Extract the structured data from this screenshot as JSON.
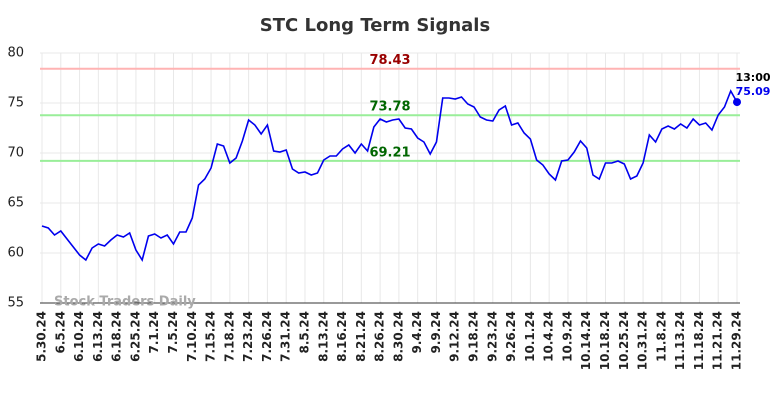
{
  "chart_data": {
    "type": "line",
    "title": "STC Long Term Signals",
    "watermark": "Stock Traders Daily",
    "categories": [
      "5.30.24",
      null,
      null,
      "6.5.24",
      null,
      null,
      "6.10.24",
      null,
      null,
      "6.13.24",
      null,
      null,
      "6.18.24",
      null,
      null,
      "6.25.24",
      null,
      null,
      "7.1.24",
      null,
      null,
      "7.5.24",
      null,
      null,
      "7.10.24",
      null,
      null,
      "7.15.24",
      null,
      null,
      "7.18.24",
      null,
      null,
      "7.23.24",
      null,
      null,
      "7.26.24",
      null,
      null,
      "7.31.24",
      null,
      null,
      "8.5.24",
      null,
      null,
      "8.13.24",
      null,
      null,
      "8.16.24",
      null,
      null,
      "8.21.24",
      null,
      null,
      "8.26.24",
      null,
      null,
      "8.30.24",
      null,
      null,
      "9.4.24",
      null,
      null,
      "9.9.24",
      null,
      null,
      "9.12.24",
      null,
      null,
      "9.18.24",
      null,
      null,
      "9.23.24",
      null,
      null,
      "9.26.24",
      null,
      null,
      "10.1.24",
      null,
      null,
      "10.4.24",
      null,
      null,
      "10.9.24",
      null,
      null,
      "10.14.24",
      null,
      null,
      "10.18.24",
      null,
      null,
      "10.25.24",
      null,
      null,
      "10.31.24",
      null,
      null,
      "11.8.24",
      null,
      null,
      "11.13.24",
      null,
      null,
      "11.18.24",
      null,
      null,
      "11.21.24",
      null,
      null,
      "11.29.24"
    ],
    "series": [
      {
        "color": "#0000ee",
        "values": [
          62.7,
          62.5,
          61.8,
          62.2,
          61.4,
          60.6,
          59.8,
          59.3,
          60.5,
          60.9,
          60.7,
          61.3,
          61.8,
          61.6,
          62.0,
          60.3,
          59.3,
          61.7,
          61.9,
          61.5,
          61.8,
          60.9,
          62.1,
          62.1,
          63.5,
          66.8,
          67.4,
          68.5,
          70.9,
          70.7,
          69.0,
          69.5,
          71.2,
          73.3,
          72.8,
          71.9,
          72.8,
          70.2,
          70.1,
          70.3,
          68.4,
          68.0,
          68.1,
          67.8,
          68.0,
          69.3,
          69.7,
          69.7,
          70.4,
          70.8,
          70.0,
          70.9,
          70.2,
          72.6,
          73.4,
          73.1,
          73.3,
          73.4,
          72.5,
          72.4,
          71.5,
          71.1,
          69.9,
          71.1,
          75.5,
          75.5,
          75.4,
          75.6,
          74.9,
          74.6,
          73.6,
          73.3,
          73.2,
          74.3,
          74.7,
          72.8,
          73.0,
          72.0,
          71.4,
          69.3,
          68.8,
          67.9,
          67.3,
          69.2,
          69.3,
          70.1,
          71.2,
          70.5,
          67.8,
          67.4,
          69.0,
          69.0,
          69.2,
          68.9,
          67.4,
          67.7,
          69.0,
          71.8,
          71.1,
          72.4,
          72.7,
          72.4,
          72.9,
          72.5,
          73.4,
          72.8,
          73.0,
          72.3,
          73.8,
          74.6,
          76.2,
          75.09
        ]
      }
    ],
    "hlines": [
      {
        "value": 78.43,
        "color": "#ffb3b3",
        "label_color": "#990000"
      },
      {
        "value": 73.78,
        "color": "#99ee99",
        "label_color": "#006600"
      },
      {
        "value": 69.21,
        "color": "#99ee99",
        "label_color": "#006600"
      }
    ],
    "last_time": "13:00",
    "ylim": [
      55,
      80
    ],
    "yticks": [
      55,
      60,
      65,
      70,
      75,
      80
    ],
    "grid": true
  }
}
